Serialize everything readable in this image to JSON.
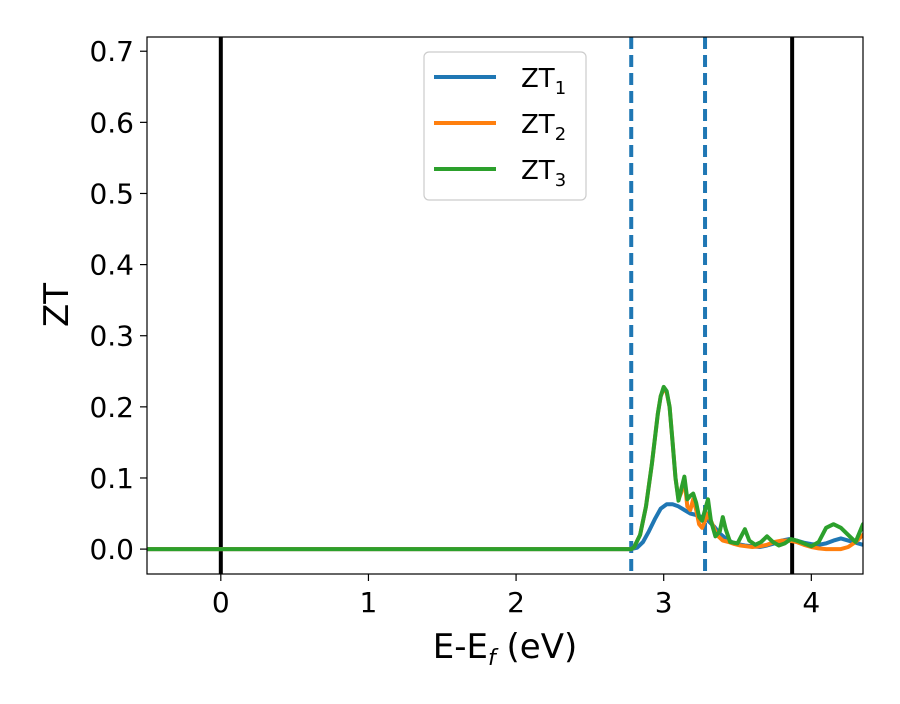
{
  "chart_data": {
    "type": "line",
    "xlabel": "E-E",
    "xlabel_subscript": "f",
    "xlabel_unit": " (eV)",
    "ylabel": "ZT",
    "xlim": [
      -0.5,
      4.35
    ],
    "ylim": [
      -0.035,
      0.72
    ],
    "xticks": [
      0,
      1,
      2,
      3,
      4
    ],
    "yticks": [
      0.0,
      0.1,
      0.2,
      0.3,
      0.4,
      0.5,
      0.6,
      0.7
    ],
    "grid": false,
    "legend": "upper-center",
    "vlines": [
      {
        "x": 0.0,
        "style": "solid",
        "color": "#000000"
      },
      {
        "x": 2.78,
        "style": "dashed",
        "color": "#1f77b4"
      },
      {
        "x": 3.28,
        "style": "dashed",
        "color": "#1f77b4"
      },
      {
        "x": 3.87,
        "style": "solid",
        "color": "#000000"
      }
    ],
    "series": [
      {
        "name": "ZT",
        "subscript": "1",
        "color": "#1f77b4",
        "x": [
          -0.5,
          2.78,
          2.82,
          2.86,
          2.9,
          2.94,
          2.98,
          3.02,
          3.06,
          3.1,
          3.14,
          3.18,
          3.22,
          3.26,
          3.3,
          3.34,
          3.38,
          3.42,
          3.46,
          3.5,
          3.55,
          3.6,
          3.65,
          3.7,
          3.75,
          3.8,
          3.85,
          3.9,
          3.95,
          4.0,
          4.05,
          4.1,
          4.15,
          4.2,
          4.25,
          4.3,
          4.35
        ],
        "y": [
          0.0,
          0.0,
          0.002,
          0.01,
          0.025,
          0.042,
          0.057,
          0.063,
          0.063,
          0.06,
          0.055,
          0.05,
          0.048,
          0.045,
          0.04,
          0.032,
          0.022,
          0.015,
          0.01,
          0.007,
          0.005,
          0.004,
          0.003,
          0.005,
          0.008,
          0.012,
          0.014,
          0.012,
          0.009,
          0.007,
          0.006,
          0.008,
          0.012,
          0.015,
          0.012,
          0.009,
          0.006
        ]
      },
      {
        "name": "ZT",
        "subscript": "2",
        "color": "#ff7f0e",
        "x": [
          -0.5,
          2.78,
          2.8,
          2.84,
          2.88,
          2.92,
          2.96,
          2.98,
          3.0,
          3.02,
          3.04,
          3.06,
          3.08,
          3.1,
          3.12,
          3.14,
          3.16,
          3.18,
          3.2,
          3.22,
          3.24,
          3.26,
          3.28,
          3.3,
          3.32,
          3.36,
          3.4,
          3.44,
          3.48,
          3.52,
          3.56,
          3.6,
          3.65,
          3.7,
          3.75,
          3.8,
          3.85,
          3.9,
          3.95,
          4.0,
          4.05,
          4.1,
          4.15,
          4.2,
          4.25,
          4.3,
          4.35
        ],
        "y": [
          0.0,
          0.0,
          0.003,
          0.02,
          0.06,
          0.12,
          0.19,
          0.215,
          0.225,
          0.22,
          0.2,
          0.15,
          0.1,
          0.07,
          0.08,
          0.1,
          0.06,
          0.055,
          0.07,
          0.055,
          0.035,
          0.03,
          0.04,
          0.05,
          0.04,
          0.02,
          0.012,
          0.01,
          0.007,
          0.005,
          0.004,
          0.003,
          0.004,
          0.006,
          0.01,
          0.012,
          0.012,
          0.01,
          0.006,
          0.003,
          0.001,
          0.0,
          0.0,
          0.0,
          0.003,
          0.01,
          0.02
        ]
      },
      {
        "name": "ZT",
        "subscript": "3",
        "color": "#2ca02c",
        "x": [
          -0.5,
          2.78,
          2.8,
          2.84,
          2.88,
          2.92,
          2.96,
          2.98,
          3.0,
          3.02,
          3.04,
          3.06,
          3.08,
          3.1,
          3.12,
          3.14,
          3.16,
          3.18,
          3.2,
          3.22,
          3.24,
          3.26,
          3.28,
          3.3,
          3.32,
          3.35,
          3.38,
          3.4,
          3.42,
          3.45,
          3.5,
          3.53,
          3.55,
          3.58,
          3.62,
          3.66,
          3.7,
          3.74,
          3.78,
          3.82,
          3.86,
          3.9,
          3.95,
          4.0,
          4.05,
          4.1,
          4.15,
          4.2,
          4.25,
          4.3,
          4.35
        ],
        "y": [
          0.0,
          0.0,
          0.003,
          0.02,
          0.06,
          0.12,
          0.19,
          0.215,
          0.228,
          0.222,
          0.2,
          0.15,
          0.1,
          0.068,
          0.085,
          0.102,
          0.07,
          0.075,
          0.078,
          0.065,
          0.045,
          0.04,
          0.055,
          0.07,
          0.04,
          0.018,
          0.025,
          0.045,
          0.028,
          0.01,
          0.008,
          0.02,
          0.028,
          0.012,
          0.006,
          0.01,
          0.018,
          0.01,
          0.005,
          0.008,
          0.014,
          0.012,
          0.008,
          0.004,
          0.01,
          0.03,
          0.035,
          0.03,
          0.02,
          0.01,
          0.035
        ]
      }
    ]
  }
}
